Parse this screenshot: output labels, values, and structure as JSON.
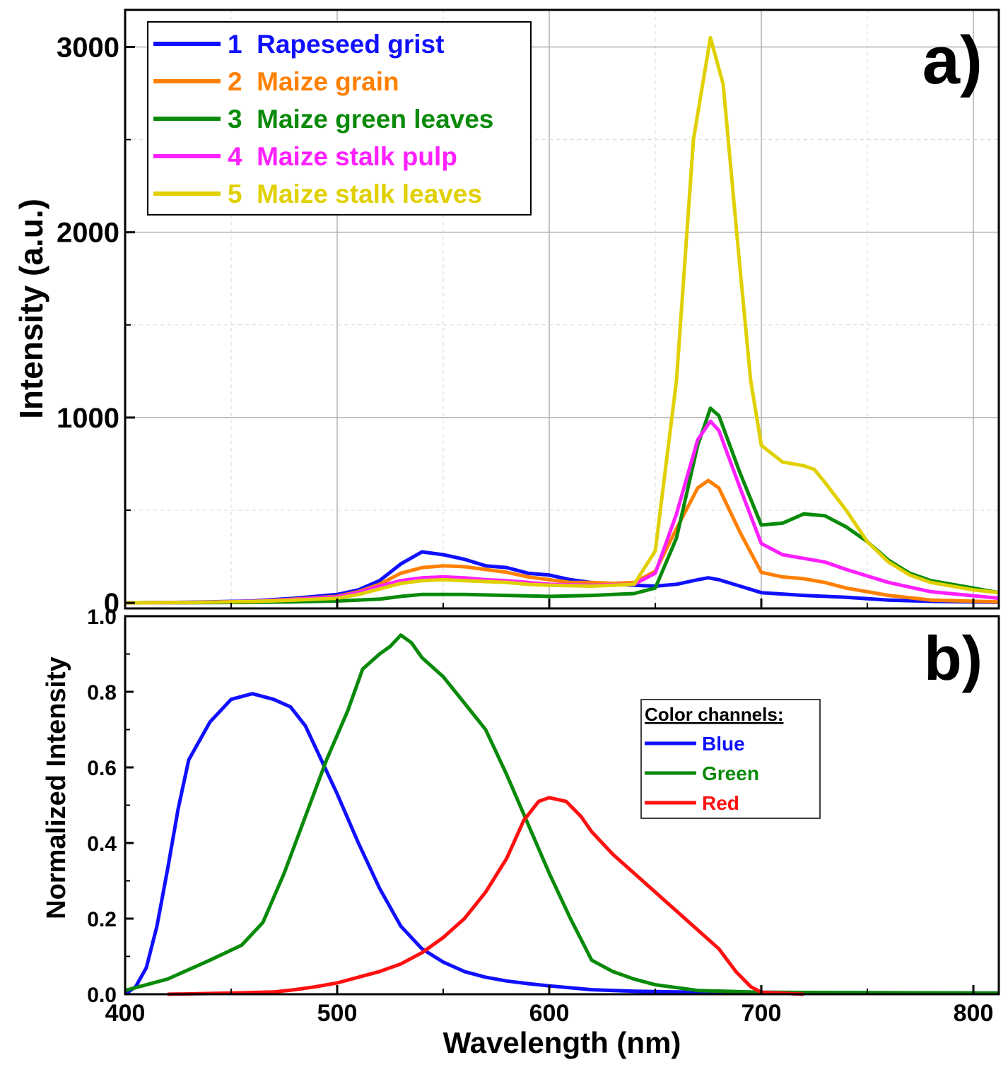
{
  "chart_data": [
    {
      "panel": "a)",
      "type": "line",
      "title": "",
      "xlabel": "",
      "ylabel": "Intensity (a.u.)",
      "xlim": [
        400,
        812
      ],
      "ylim": [
        -30,
        3200
      ],
      "yticks": [
        0,
        1000,
        2000,
        3000
      ],
      "grid": true,
      "legend": "top-left",
      "series": [
        {
          "name": "1  Rapeseed grist",
          "color": "#1010ff",
          "points": [
            [
              400,
              0
            ],
            [
              430,
              3
            ],
            [
              460,
              10
            ],
            [
              480,
              25
            ],
            [
              500,
              45
            ],
            [
              510,
              70
            ],
            [
              520,
              120
            ],
            [
              530,
              210
            ],
            [
              540,
              275
            ],
            [
              550,
              260
            ],
            [
              560,
              235
            ],
            [
              570,
              200
            ],
            [
              580,
              190
            ],
            [
              590,
              160
            ],
            [
              600,
              150
            ],
            [
              610,
              125
            ],
            [
              620,
              110
            ],
            [
              630,
              100
            ],
            [
              640,
              95
            ],
            [
              650,
              90
            ],
            [
              660,
              100
            ],
            [
              670,
              125
            ],
            [
              675,
              135
            ],
            [
              680,
              125
            ],
            [
              690,
              90
            ],
            [
              700,
              55
            ],
            [
              720,
              40
            ],
            [
              740,
              30
            ],
            [
              760,
              15
            ],
            [
              780,
              8
            ],
            [
              812,
              3
            ]
          ]
        },
        {
          "name": "2  Maize grain",
          "color": "#ff8000",
          "points": [
            [
              400,
              0
            ],
            [
              430,
              2
            ],
            [
              460,
              8
            ],
            [
              480,
              20
            ],
            [
              500,
              35
            ],
            [
              510,
              60
            ],
            [
              520,
              100
            ],
            [
              530,
              160
            ],
            [
              540,
              190
            ],
            [
              550,
              200
            ],
            [
              560,
              195
            ],
            [
              570,
              180
            ],
            [
              580,
              165
            ],
            [
              590,
              140
            ],
            [
              600,
              125
            ],
            [
              610,
              110
            ],
            [
              620,
              110
            ],
            [
              630,
              105
            ],
            [
              640,
              110
            ],
            [
              650,
              170
            ],
            [
              660,
              400
            ],
            [
              670,
              620
            ],
            [
              675,
              660
            ],
            [
              680,
              620
            ],
            [
              690,
              380
            ],
            [
              700,
              165
            ],
            [
              710,
              140
            ],
            [
              720,
              130
            ],
            [
              730,
              110
            ],
            [
              740,
              80
            ],
            [
              760,
              40
            ],
            [
              780,
              15
            ],
            [
              812,
              5
            ]
          ]
        },
        {
          "name": "3  Maize green leaves",
          "color": "#0a8a0a",
          "points": [
            [
              400,
              0
            ],
            [
              450,
              2
            ],
            [
              480,
              5
            ],
            [
              500,
              10
            ],
            [
              520,
              20
            ],
            [
              530,
              35
            ],
            [
              540,
              45
            ],
            [
              560,
              45
            ],
            [
              580,
              40
            ],
            [
              600,
              35
            ],
            [
              620,
              40
            ],
            [
              640,
              50
            ],
            [
              650,
              80
            ],
            [
              660,
              350
            ],
            [
              670,
              850
            ],
            [
              676,
              1050
            ],
            [
              680,
              1010
            ],
            [
              690,
              700
            ],
            [
              700,
              420
            ],
            [
              710,
              430
            ],
            [
              720,
              480
            ],
            [
              730,
              470
            ],
            [
              740,
              410
            ],
            [
              750,
              330
            ],
            [
              760,
              230
            ],
            [
              770,
              160
            ],
            [
              780,
              120
            ],
            [
              800,
              80
            ],
            [
              812,
              55
            ]
          ]
        },
        {
          "name": "4  Maize stalk pulp",
          "color": "#ff20ff",
          "points": [
            [
              400,
              0
            ],
            [
              430,
              2
            ],
            [
              460,
              8
            ],
            [
              480,
              18
            ],
            [
              500,
              32
            ],
            [
              510,
              55
            ],
            [
              520,
              90
            ],
            [
              530,
              120
            ],
            [
              540,
              135
            ],
            [
              550,
              140
            ],
            [
              560,
              135
            ],
            [
              570,
              125
            ],
            [
              580,
              120
            ],
            [
              590,
              110
            ],
            [
              600,
              100
            ],
            [
              620,
              95
            ],
            [
              640,
              100
            ],
            [
              650,
              160
            ],
            [
              660,
              480
            ],
            [
              670,
              880
            ],
            [
              676,
              980
            ],
            [
              680,
              930
            ],
            [
              690,
              620
            ],
            [
              700,
              320
            ],
            [
              710,
              260
            ],
            [
              720,
              240
            ],
            [
              730,
              220
            ],
            [
              740,
              180
            ],
            [
              760,
              110
            ],
            [
              780,
              60
            ],
            [
              812,
              25
            ]
          ]
        },
        {
          "name": "5  Maize stalk leaves",
          "color": "#e0d000",
          "points": [
            [
              400,
              0
            ],
            [
              430,
              2
            ],
            [
              460,
              7
            ],
            [
              480,
              15
            ],
            [
              500,
              25
            ],
            [
              510,
              45
            ],
            [
              520,
              75
            ],
            [
              530,
              105
            ],
            [
              540,
              120
            ],
            [
              550,
              125
            ],
            [
              560,
              120
            ],
            [
              570,
              115
            ],
            [
              580,
              110
            ],
            [
              590,
              100
            ],
            [
              600,
              95
            ],
            [
              620,
              90
            ],
            [
              640,
              100
            ],
            [
              650,
              280
            ],
            [
              660,
              1200
            ],
            [
              668,
              2500
            ],
            [
              676,
              3050
            ],
            [
              682,
              2800
            ],
            [
              690,
              1800
            ],
            [
              695,
              1200
            ],
            [
              700,
              850
            ],
            [
              710,
              760
            ],
            [
              720,
              740
            ],
            [
              725,
              720
            ],
            [
              730,
              650
            ],
            [
              740,
              500
            ],
            [
              750,
              330
            ],
            [
              760,
              220
            ],
            [
              770,
              150
            ],
            [
              780,
              110
            ],
            [
              800,
              70
            ],
            [
              812,
              55
            ]
          ]
        }
      ],
      "title_label": "a)"
    },
    {
      "panel": "b)",
      "type": "line",
      "title": "",
      "xlabel": "Wavelength (nm)",
      "ylabel": "Normalized Intensity",
      "xlim": [
        400,
        812
      ],
      "ylim": [
        0,
        1.0
      ],
      "xticks": [
        400,
        500,
        600,
        700,
        800
      ],
      "yticks": [
        0.0,
        0.2,
        0.4,
        0.6,
        0.8,
        1.0
      ],
      "ytick_labels": [
        "0.0",
        "0.2",
        "0.4",
        "0.6",
        "0.8",
        "1.0"
      ],
      "grid": false,
      "legend": "center-right",
      "legend_title": "Color channels:",
      "series": [
        {
          "name": "Blue",
          "color": "#1010ff",
          "points": [
            [
              400,
              0.0
            ],
            [
              405,
              0.02
            ],
            [
              410,
              0.07
            ],
            [
              415,
              0.18
            ],
            [
              420,
              0.33
            ],
            [
              425,
              0.49
            ],
            [
              430,
              0.62
            ],
            [
              440,
              0.72
            ],
            [
              450,
              0.78
            ],
            [
              460,
              0.795
            ],
            [
              470,
              0.78
            ],
            [
              478,
              0.76
            ],
            [
              485,
              0.71
            ],
            [
              490,
              0.65
            ],
            [
              500,
              0.53
            ],
            [
              510,
              0.4
            ],
            [
              520,
              0.28
            ],
            [
              530,
              0.18
            ],
            [
              540,
              0.12
            ],
            [
              550,
              0.085
            ],
            [
              560,
              0.06
            ],
            [
              570,
              0.045
            ],
            [
              580,
              0.035
            ],
            [
              590,
              0.028
            ],
            [
              600,
              0.022
            ],
            [
              620,
              0.012
            ],
            [
              640,
              0.008
            ],
            [
              660,
              0.006
            ],
            [
              700,
              0.005
            ],
            [
              750,
              0.004
            ],
            [
              812,
              0.003
            ]
          ]
        },
        {
          "name": "Green",
          "color": "#0a8a0a",
          "points": [
            [
              400,
              0.01
            ],
            [
              420,
              0.04
            ],
            [
              440,
              0.09
            ],
            [
              455,
              0.13
            ],
            [
              465,
              0.19
            ],
            [
              475,
              0.32
            ],
            [
              485,
              0.47
            ],
            [
              495,
              0.62
            ],
            [
              505,
              0.75
            ],
            [
              512,
              0.86
            ],
            [
              520,
              0.9
            ],
            [
              525,
              0.92
            ],
            [
              530,
              0.95
            ],
            [
              535,
              0.93
            ],
            [
              540,
              0.89
            ],
            [
              550,
              0.84
            ],
            [
              560,
              0.77
            ],
            [
              570,
              0.7
            ],
            [
              580,
              0.58
            ],
            [
              590,
              0.45
            ],
            [
              600,
              0.32
            ],
            [
              610,
              0.2
            ],
            [
              620,
              0.09
            ],
            [
              630,
              0.06
            ],
            [
              640,
              0.04
            ],
            [
              650,
              0.025
            ],
            [
              670,
              0.01
            ],
            [
              700,
              0.005
            ],
            [
              812,
              0.003
            ]
          ]
        },
        {
          "name": "Red",
          "color": "#ff1010",
          "points": [
            [
              420,
              0.0
            ],
            [
              450,
              0.003
            ],
            [
              470,
              0.006
            ],
            [
              480,
              0.012
            ],
            [
              490,
              0.02
            ],
            [
              500,
              0.03
            ],
            [
              510,
              0.045
            ],
            [
              520,
              0.06
            ],
            [
              530,
              0.08
            ],
            [
              540,
              0.11
            ],
            [
              550,
              0.15
            ],
            [
              560,
              0.2
            ],
            [
              570,
              0.27
            ],
            [
              580,
              0.36
            ],
            [
              588,
              0.46
            ],
            [
              595,
              0.51
            ],
            [
              600,
              0.52
            ],
            [
              608,
              0.51
            ],
            [
              615,
              0.47
            ],
            [
              620,
              0.43
            ],
            [
              630,
              0.37
            ],
            [
              640,
              0.32
            ],
            [
              650,
              0.27
            ],
            [
              660,
              0.22
            ],
            [
              670,
              0.17
            ],
            [
              680,
              0.12
            ],
            [
              688,
              0.06
            ],
            [
              695,
              0.02
            ],
            [
              700,
              0.005
            ],
            [
              720,
              0.0
            ]
          ]
        }
      ],
      "title_label": "b)"
    }
  ]
}
